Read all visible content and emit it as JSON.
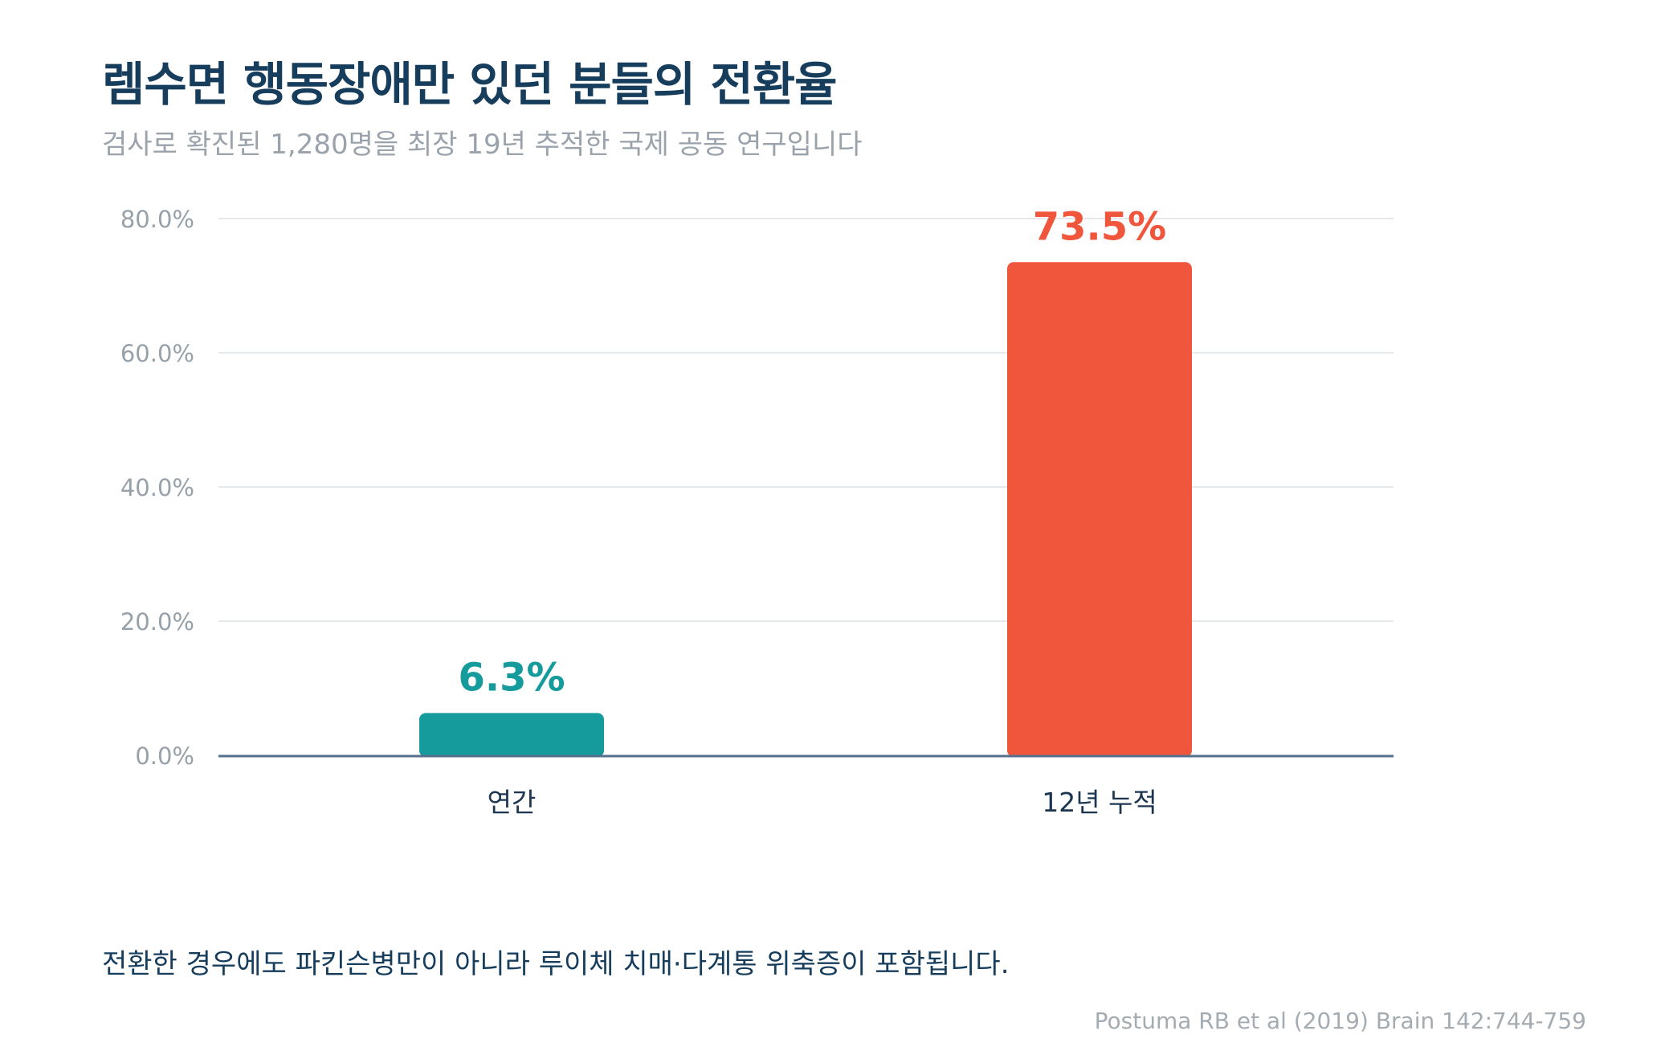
{
  "title": "렘수면 행동장애만 있던 분들의 전환율",
  "subtitle": "검사로 확진된 1,280명을 최장 19년 추적한 국제 공동 연구입니다",
  "note": "전환한 경우에도 파킨슨병만이 아니라 루이체 치매·다계통 위축증이 포함됩니다.",
  "source": "Postuma RB et al (2019) Brain 142:744-759",
  "colors": {
    "title": "#163d5c",
    "annual_bar": "#159b9c",
    "cumulative_bar": "#ef563c",
    "axis_line": "#54708c",
    "grid": "#e6e9ec",
    "tick_label": "#97a1aa"
  },
  "chart_data": {
    "type": "bar",
    "categories": [
      "연간",
      "12년 누적"
    ],
    "values": [
      6.3,
      73.5
    ],
    "data_labels": [
      "6.3%",
      "73.5%"
    ],
    "bar_colors": [
      "#159b9c",
      "#ef563c"
    ],
    "ylim": [
      0,
      80
    ],
    "yticks": [
      0,
      20,
      40,
      60,
      80
    ],
    "ytick_labels": [
      "0.0%",
      "20.0%",
      "40.0%",
      "60.0%",
      "80.0%"
    ],
    "grid": true,
    "legend": false
  }
}
